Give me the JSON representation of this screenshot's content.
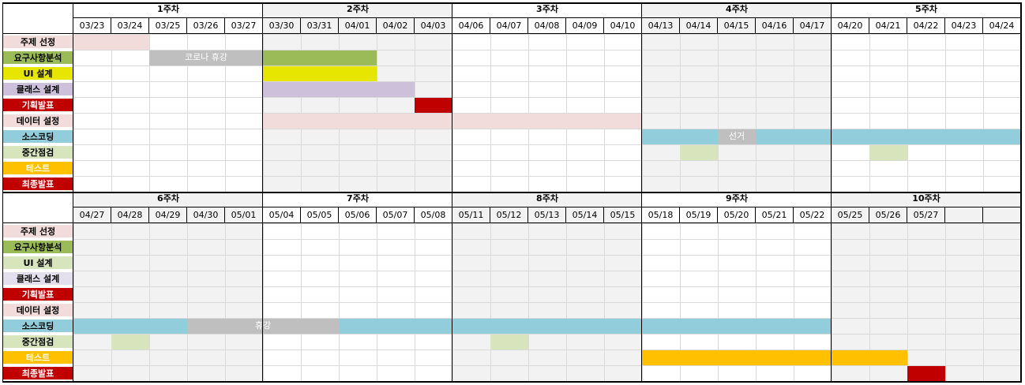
{
  "sections": [
    {
      "weeks": [
        "1주차",
        "2주차",
        "3주차",
        "4주차",
        "5주차"
      ],
      "dates": [
        "03/23",
        "03/24",
        "03/25",
        "03/26",
        "03/27",
        "03/30",
        "03/31",
        "04/01",
        "04/02",
        "04/03",
        "04/06",
        "04/07",
        "04/08",
        "04/09",
        "04/10",
        "04/13",
        "04/14",
        "04/15",
        "04/16",
        "04/17",
        "04/20",
        "04/21",
        "04/22",
        "04/23",
        "04/24"
      ],
      "gray_weeks": [
        1,
        3
      ],
      "bars": [
        {
          "row": 0,
          "start": 0,
          "end": 2,
          "color": "#f2dcdb"
        },
        {
          "row": 1,
          "start": 2,
          "end": 5,
          "color": "#bfbfbf",
          "text": "코로나 휴강"
        },
        {
          "row": 1,
          "start": 5,
          "end": 8,
          "color": "#9bbb59"
        },
        {
          "row": 2,
          "start": 5,
          "end": 8,
          "color": "#e6e600"
        },
        {
          "row": 3,
          "start": 5,
          "end": 9,
          "color": "#ccc0da"
        },
        {
          "row": 4,
          "start": 9,
          "end": 10,
          "color": "#c00000"
        },
        {
          "row": 5,
          "start": 5,
          "end": 15,
          "color": "#f2dcdb"
        },
        {
          "row": 6,
          "start": 15,
          "end": 17,
          "color": "#92cddc"
        },
        {
          "row": 6,
          "start": 17,
          "end": 18,
          "color": "#bfbfbf",
          "text": "선거"
        },
        {
          "row": 6,
          "start": 18,
          "end": 25,
          "color": "#92cddc"
        },
        {
          "row": 7,
          "start": 16,
          "end": 17,
          "color": "#d7e4bc"
        },
        {
          "row": 7,
          "start": 21,
          "end": 22,
          "color": "#d7e4bc"
        }
      ]
    },
    {
      "weeks": [
        "6주차",
        "7주차",
        "8주차",
        "9주차",
        "10주차"
      ],
      "dates": [
        "04/27",
        "04/28",
        "04/29",
        "04/30",
        "05/01",
        "05/04",
        "05/05",
        "05/06",
        "05/07",
        "05/08",
        "05/11",
        "05/12",
        "05/13",
        "05/14",
        "05/15",
        "05/18",
        "05/19",
        "05/20",
        "05/21",
        "05/22",
        "05/25",
        "05/26",
        "05/27",
        "",
        ""
      ],
      "gray_weeks": [
        0,
        2,
        4
      ],
      "bars": [
        {
          "row": 6,
          "start": 0,
          "end": 3,
          "color": "#92cddc"
        },
        {
          "row": 6,
          "start": 3,
          "end": 7,
          "color": "#bfbfbf",
          "text": "휴강"
        },
        {
          "row": 6,
          "start": 7,
          "end": 20,
          "color": "#92cddc"
        },
        {
          "row": 7,
          "start": 1,
          "end": 2,
          "color": "#d7e4bc"
        },
        {
          "row": 7,
          "start": 11,
          "end": 12,
          "color": "#d7e4bc"
        },
        {
          "row": 8,
          "start": 15,
          "end": 22,
          "color": "#ffc000"
        },
        {
          "row": 9,
          "start": 22,
          "end": 23,
          "color": "#c00000"
        }
      ]
    }
  ],
  "tasks": [
    {
      "label": "주제 선정",
      "color": "#f2dcdb",
      "text_color": "#000000"
    },
    {
      "label": "요구사항분석",
      "color": "#9bbb59",
      "text_color": "#000000"
    },
    {
      "label": "UI 설계",
      "color": "#e6e600",
      "text_color": "#000000"
    },
    {
      "label": "클래스 설계",
      "color": "#ccc0da",
      "text_color": "#000000"
    },
    {
      "label": "기획발표",
      "color": "#c00000",
      "text_color": "#ffffff"
    },
    {
      "label": "데이터 설정",
      "color": "#f2dcdb",
      "text_color": "#000000"
    },
    {
      "label": "소스코딩",
      "color": "#92cddc",
      "text_color": "#000000"
    },
    {
      "label": "중간점검",
      "color": "#d7e4bc",
      "text_color": "#000000"
    },
    {
      "label": "테스트",
      "color": "#ffc000",
      "text_color": "#ffffff"
    },
    {
      "label": "최종발표",
      "color": "#c00000",
      "text_color": "#ffffff"
    }
  ],
  "tasks_section2": [
    {
      "label": "주제 선정",
      "color": "#f2dcdb",
      "text_color": "#000000"
    },
    {
      "label": "요구사항분석",
      "color": "#9bbb59",
      "text_color": "#000000"
    },
    {
      "label": "UI 설계",
      "color": "#d7e4bc",
      "text_color": "#000000"
    },
    {
      "label": "클래스 설계",
      "color": "#e4dfec",
      "text_color": "#000000"
    },
    {
      "label": "기획발표",
      "color": "#c00000",
      "text_color": "#ffffff"
    },
    {
      "label": "데이터 설정",
      "color": "#f2dcdb",
      "text_color": "#000000"
    },
    {
      "label": "소스코딩",
      "color": "#92cddc",
      "text_color": "#000000"
    },
    {
      "label": "중간점검",
      "color": "#d7e4bc",
      "text_color": "#000000"
    },
    {
      "label": "테스트",
      "color": "#ffc000",
      "text_color": "#ffffff"
    },
    {
      "label": "최종발표",
      "color": "#c00000",
      "text_color": "#ffffff"
    }
  ]
}
